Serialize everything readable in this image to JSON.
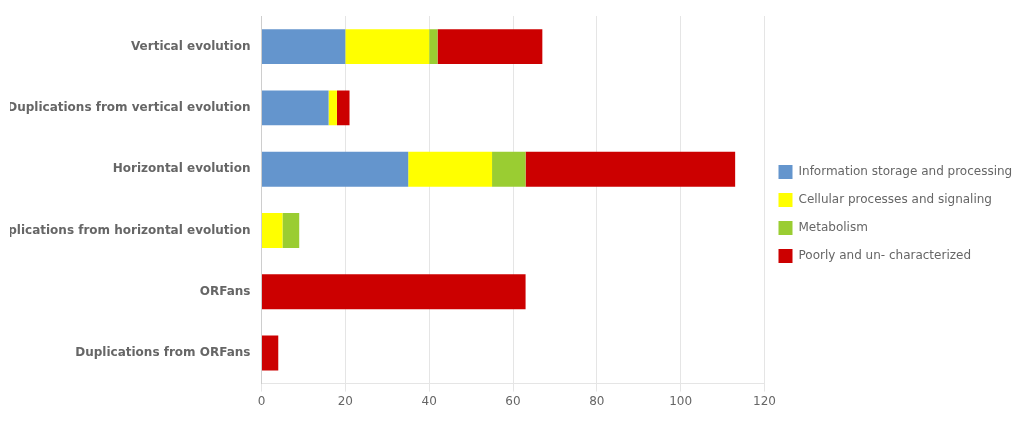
{
  "chart_data": {
    "type": "bar",
    "orientation": "horizontal",
    "stacked": true,
    "categories": [
      "Vertical evolution",
      "Duplications from vertical evolution",
      "Horizontal evolution",
      "Duplications from horizontal evolution",
      "ORFans",
      "Duplications from ORFans"
    ],
    "series": [
      {
        "name": "Information storage and processing",
        "color": "#6495CD",
        "values": [
          20,
          16,
          35,
          0,
          0,
          0
        ]
      },
      {
        "name": "Cellular processes and signaling",
        "color": "#FFFF00",
        "values": [
          20,
          2,
          20,
          5,
          0,
          0
        ]
      },
      {
        "name": "Metabolism",
        "color": "#9ACD32",
        "values": [
          2,
          0,
          8,
          4,
          0,
          0
        ]
      },
      {
        "name": "Poorly and un- characterized",
        "color": "#CC0000",
        "values": [
          25,
          3,
          50,
          0,
          63,
          4
        ]
      }
    ],
    "xlim": [
      0,
      120
    ],
    "xticks": [
      0,
      20,
      40,
      60,
      80,
      100,
      120
    ],
    "grid": true,
    "legend": "right"
  }
}
